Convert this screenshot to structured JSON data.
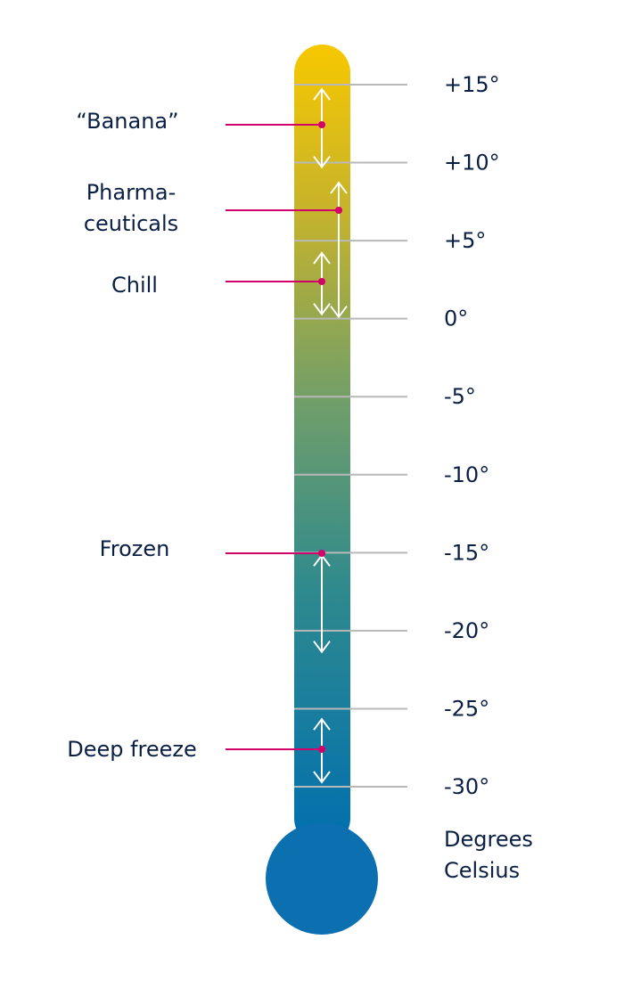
{
  "scale": {
    "min": -30,
    "max": 15,
    "step": 5,
    "ticks": [
      {
        "value": 15,
        "label": "+15°"
      },
      {
        "value": 10,
        "label": "+10°"
      },
      {
        "value": 5,
        "label": "+5°"
      },
      {
        "value": 0,
        "label": "0°"
      },
      {
        "value": -5,
        "label": "-5°"
      },
      {
        "value": -10,
        "label": "-10°"
      },
      {
        "value": -15,
        "label": "-15°"
      },
      {
        "value": -20,
        "label": "-20°"
      },
      {
        "value": -25,
        "label": "-25°"
      },
      {
        "value": -30,
        "label": "-30°"
      }
    ],
    "unit_lines": [
      "Degrees",
      "Celsius"
    ]
  },
  "ranges": [
    {
      "id": "banana",
      "label_lines": [
        "“Banana”"
      ],
      "from": 10,
      "to": 15
    },
    {
      "id": "pharmaceuticals",
      "label_lines": [
        "Pharma-",
        "ceuticals"
      ],
      "from": 0,
      "to": 9
    },
    {
      "id": "chill",
      "label_lines": [
        "Chill"
      ],
      "from": 0,
      "to": 4.5
    },
    {
      "id": "frozen",
      "label_lines": [
        "Frozen"
      ],
      "from": -22.5,
      "to": -15
    },
    {
      "id": "deep-freeze",
      "label_lines": [
        "Deep freeze"
      ],
      "from": -30,
      "to": -25.5
    }
  ],
  "colors": {
    "top": "#f7c800",
    "upper": "#c8b42a",
    "middle": "#6f9e6a",
    "lower": "#2f8a8d",
    "bottom": "#006fb0",
    "bulb": "#0b6fb0",
    "tick_line": "#b8b8b8",
    "arrow": "#ffffff",
    "connector": "#d4006a",
    "text": "#0a1f44"
  }
}
